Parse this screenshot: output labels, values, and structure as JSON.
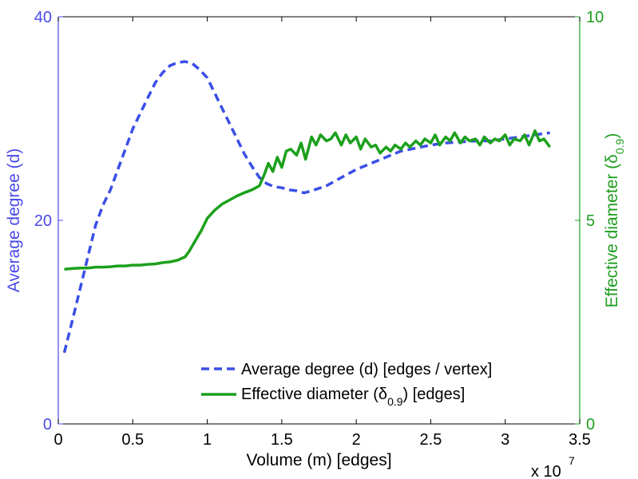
{
  "chart_data": {
    "type": "line",
    "xlabel": "Volume (m) [edges]",
    "x_multiplier_label": "x 10",
    "x_multiplier_exp": "7",
    "xlim": [
      0,
      3.5
    ],
    "x_ticks": [
      "0",
      "0.5",
      "1",
      "1.5",
      "2",
      "2.5",
      "3",
      "3.5"
    ],
    "x_tick_values": [
      0,
      0.5,
      1,
      1.5,
      2,
      2.5,
      3,
      3.5
    ],
    "left_axis": {
      "label": "Average degree (d)",
      "ylim": [
        0,
        40
      ],
      "ticks": [
        "0",
        "20",
        "40"
      ],
      "tick_values": [
        0,
        20,
        40
      ],
      "color": "#4a4ae8"
    },
    "right_axis": {
      "label_main": "Effective diameter (δ",
      "label_sub": "0.9",
      "label_end": ")",
      "ylim": [
        0,
        10
      ],
      "ticks": [
        "0",
        "5",
        "10"
      ],
      "tick_values": [
        0,
        5,
        10
      ],
      "color": "#1f9e1f"
    },
    "series": [
      {
        "name": "Average degree (d) [edges / vertex]",
        "axis": "left",
        "style": "dashed",
        "color": "#3a4fe6",
        "x": [
          0.04,
          0.1,
          0.15,
          0.2,
          0.25,
          0.3,
          0.35,
          0.4,
          0.45,
          0.5,
          0.55,
          0.6,
          0.65,
          0.7,
          0.75,
          0.8,
          0.85,
          0.9,
          0.95,
          1.0,
          1.05,
          1.1,
          1.15,
          1.2,
          1.25,
          1.3,
          1.35,
          1.4,
          1.45,
          1.5,
          1.55,
          1.6,
          1.65,
          1.7,
          1.8,
          1.9,
          2.0,
          2.1,
          2.2,
          2.3,
          2.4,
          2.5,
          2.6,
          2.7,
          2.8,
          2.9,
          3.0,
          3.1,
          3.2,
          3.3
        ],
        "y": [
          7.0,
          10.5,
          13.5,
          16.5,
          19.5,
          21.5,
          23.0,
          25.0,
          27.0,
          29.0,
          30.5,
          32.0,
          33.5,
          34.5,
          35.2,
          35.5,
          35.6,
          35.4,
          34.8,
          34.0,
          32.5,
          31.0,
          29.5,
          28.0,
          26.5,
          25.3,
          24.2,
          23.6,
          23.3,
          23.2,
          23.0,
          22.9,
          22.7,
          22.9,
          23.4,
          24.2,
          25.0,
          25.6,
          26.2,
          26.8,
          27.1,
          27.4,
          27.6,
          27.7,
          27.8,
          27.8,
          28.0,
          28.2,
          28.4,
          28.6
        ]
      },
      {
        "name_main": "Effective diameter (δ",
        "name_sub": "0.9",
        "name_end": ") [edges]",
        "axis": "right",
        "style": "solid",
        "color": "#1ca01c",
        "x": [
          0.04,
          0.1,
          0.15,
          0.2,
          0.25,
          0.3,
          0.35,
          0.4,
          0.45,
          0.5,
          0.55,
          0.6,
          0.65,
          0.7,
          0.75,
          0.8,
          0.85,
          0.88,
          0.92,
          0.96,
          1.0,
          1.05,
          1.1,
          1.15,
          1.2,
          1.25,
          1.3,
          1.35,
          1.38,
          1.41,
          1.44,
          1.47,
          1.5,
          1.53,
          1.56,
          1.6,
          1.63,
          1.66,
          1.7,
          1.73,
          1.76,
          1.8,
          1.83,
          1.86,
          1.9,
          1.93,
          1.96,
          2.0,
          2.03,
          2.06,
          2.1,
          2.13,
          2.16,
          2.2,
          2.23,
          2.26,
          2.3,
          2.33,
          2.36,
          2.4,
          2.43,
          2.46,
          2.5,
          2.53,
          2.56,
          2.6,
          2.63,
          2.66,
          2.7,
          2.73,
          2.76,
          2.8,
          2.83,
          2.86,
          2.9,
          2.93,
          2.96,
          3.0,
          3.03,
          3.06,
          3.1,
          3.13,
          3.16,
          3.2,
          3.23,
          3.26,
          3.3
        ],
        "y": [
          3.8,
          3.82,
          3.83,
          3.83,
          3.85,
          3.85,
          3.86,
          3.88,
          3.88,
          3.9,
          3.9,
          3.92,
          3.93,
          3.96,
          3.98,
          4.02,
          4.1,
          4.25,
          4.5,
          4.75,
          5.05,
          5.25,
          5.4,
          5.5,
          5.6,
          5.68,
          5.75,
          5.85,
          6.1,
          6.4,
          6.2,
          6.55,
          6.3,
          6.7,
          6.75,
          6.6,
          6.9,
          6.5,
          7.05,
          6.85,
          7.1,
          6.95,
          7.0,
          7.15,
          6.85,
          7.1,
          6.9,
          7.05,
          6.75,
          7.0,
          6.8,
          6.85,
          6.65,
          6.8,
          6.7,
          6.85,
          6.75,
          6.9,
          6.8,
          6.95,
          6.85,
          7.0,
          6.9,
          7.1,
          6.85,
          7.05,
          6.95,
          7.15,
          6.9,
          7.05,
          6.95,
          7.0,
          6.85,
          7.05,
          6.9,
          7.0,
          6.95,
          7.1,
          6.85,
          7.0,
          6.95,
          7.1,
          6.85,
          7.2,
          6.95,
          7.0,
          6.8
        ]
      }
    ]
  }
}
